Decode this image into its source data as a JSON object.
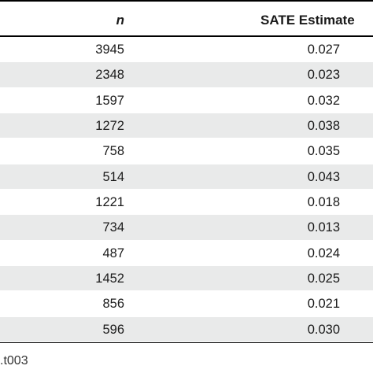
{
  "table": {
    "headers": {
      "n": "n",
      "sate": "SATE Estimate"
    },
    "rows": [
      {
        "n": "3945",
        "sate": "0.027"
      },
      {
        "n": "2348",
        "sate": "0.023"
      },
      {
        "n": "1597",
        "sate": "0.032"
      },
      {
        "n": "1272",
        "sate": "0.038"
      },
      {
        "n": "758",
        "sate": "0.035"
      },
      {
        "n": "514",
        "sate": "0.043"
      },
      {
        "n": "1221",
        "sate": "0.018"
      },
      {
        "n": "734",
        "sate": "0.013"
      },
      {
        "n": "487",
        "sate": "0.024"
      },
      {
        "n": "1452",
        "sate": "0.025"
      },
      {
        "n": "856",
        "sate": "0.021"
      },
      {
        "n": "596",
        "sate": "0.030"
      }
    ]
  },
  "footer": {
    "label": ".t003"
  }
}
